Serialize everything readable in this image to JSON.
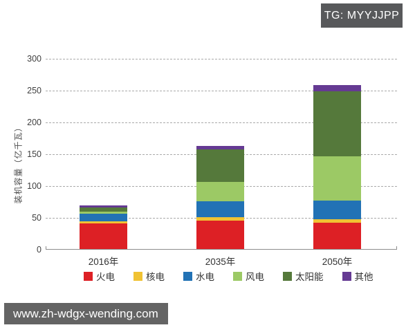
{
  "badge": {
    "text": "TG: MYYJJPP",
    "bg": "#58595b",
    "fg": "#ffffff"
  },
  "watermark": {
    "text": "www.zh-wdgx-wending.com",
    "bg": "#646464",
    "fg": "#ffffff"
  },
  "chart_data": {
    "type": "bar",
    "stacked": true,
    "title": "",
    "xlabel": "",
    "ylabel": "装机容量（亿千瓦）",
    "categories": [
      "2016年",
      "2035年",
      "2050年"
    ],
    "series": [
      {
        "name": "火电",
        "color": "#dd2025",
        "values": [
          40,
          45,
          41
        ]
      },
      {
        "name": "核电",
        "color": "#f0c233",
        "values": [
          4,
          5,
          6
        ]
      },
      {
        "name": "水电",
        "color": "#2272b5",
        "values": [
          12,
          25,
          29
        ]
      },
      {
        "name": "风电",
        "color": "#9cc965",
        "values": [
          3,
          31,
          70
        ]
      },
      {
        "name": "太阳能",
        "color": "#55793b",
        "values": [
          6,
          51,
          102
        ]
      },
      {
        "name": "其他",
        "color": "#653a93",
        "values": [
          3,
          5,
          10
        ]
      }
    ],
    "totals": [
      68,
      162,
      258
    ],
    "yticks": [
      0,
      50,
      100,
      150,
      200,
      250,
      300
    ],
    "ylim": [
      0,
      300
    ],
    "grid": "horizontal-dashed",
    "grid_color": "#a9a9a9",
    "axis_color": "#8c8c8c",
    "legend_position": "bottom"
  }
}
